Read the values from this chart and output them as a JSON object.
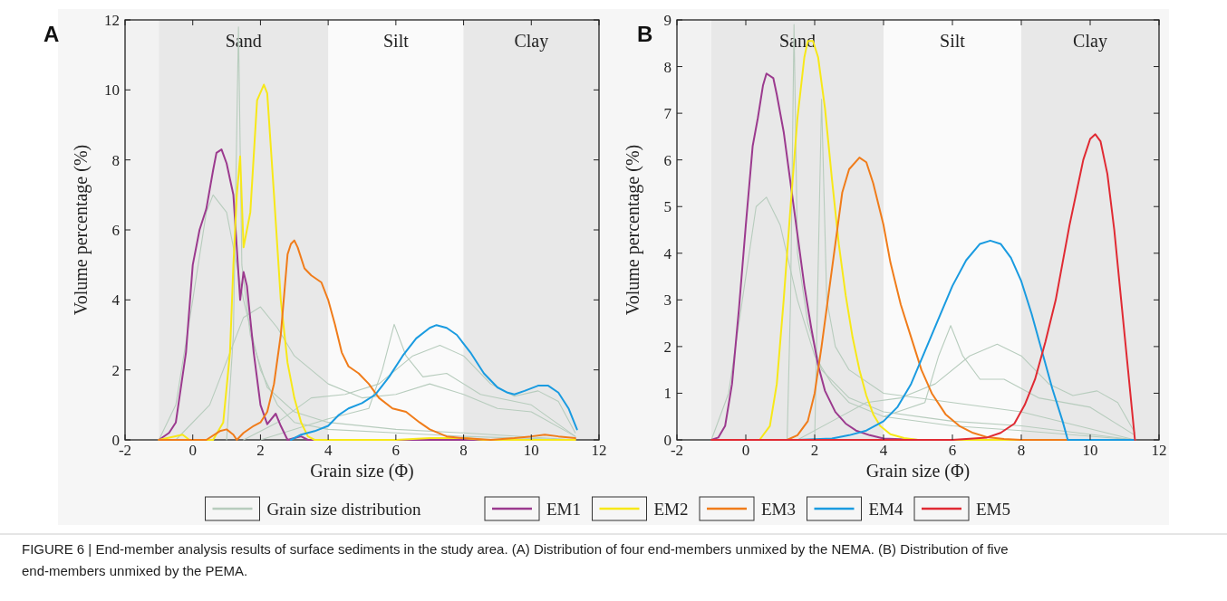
{
  "chart_data": [
    {
      "type": "line",
      "title": "A",
      "xlabel": "Grain size (Φ)",
      "ylabel": "Volume percentage (%)",
      "xlim": [
        -2,
        12
      ],
      "xticks": [
        -2,
        0,
        2,
        4,
        6,
        8,
        10,
        12
      ],
      "ylim": [
        0,
        12
      ],
      "yticks": [
        0,
        2,
        4,
        6,
        8,
        10,
        12
      ],
      "bands": [
        {
          "axis": "x",
          "from": -1,
          "to": 4,
          "label": "Sand",
          "color": "#e8e8e8"
        },
        {
          "axis": "x",
          "from": 4,
          "to": 8,
          "label": "Silt",
          "color": "#fafafa"
        },
        {
          "axis": "x",
          "from": 8,
          "to": 12,
          "label": "Clay",
          "color": "#e8e8e8"
        }
      ],
      "annotations": [
        "FIGURE 6 | End-member analysis results of surface sediments in the study area. (A) Distribution of four end-members unmixed by the NEMA. (B) Distribution of five end-members unmixed by the PEMA."
      ],
      "series": [
        {
          "color": "#b7ccbd",
          "x": [
            -1,
            -0.5,
            0,
            0.4,
            0.6,
            1,
            1.5,
            2,
            2.5,
            3,
            4,
            6,
            8,
            11.3
          ],
          "values": [
            0,
            1,
            4,
            6.5,
            7,
            6.5,
            4,
            2,
            1,
            0.5,
            0.3,
            0.2,
            0.1,
            0
          ]
        },
        {
          "color": "#b7ccbd",
          "x": [
            1,
            1.2,
            1.35,
            1.45,
            1.7,
            2.2,
            3,
            4,
            6,
            8,
            11.3
          ],
          "values": [
            0,
            3,
            11.8,
            5,
            3,
            1.5,
            0.8,
            0.5,
            0.3,
            0.2,
            0
          ]
        },
        {
          "color": "#b7ccbd",
          "x": [
            1.5,
            2.5,
            3.5,
            4.5,
            5.5,
            6.5,
            7.3,
            8,
            8.8,
            9.5,
            10.2,
            10.8,
            11.3
          ],
          "values": [
            0,
            0.5,
            1.2,
            1.3,
            1.6,
            2.4,
            2.7,
            2.4,
            1.6,
            1.25,
            1.4,
            1.1,
            0.2
          ]
        },
        {
          "color": "#b7ccbd",
          "x": [
            -0.5,
            0.5,
            1.5,
            2,
            2.5,
            3,
            4,
            5,
            6,
            7,
            8,
            9,
            10,
            11.3
          ],
          "values": [
            0,
            1,
            3.5,
            3.8,
            3.2,
            2.4,
            1.6,
            1.2,
            1.3,
            1.6,
            1.3,
            0.9,
            0.8,
            0.1
          ]
        },
        {
          "color": "#b7ccbd",
          "x": [
            2,
            4,
            5.2,
            5.6,
            5.95,
            6.3,
            6.8,
            7.5,
            8.5,
            10,
            11.3
          ],
          "values": [
            0,
            0.6,
            0.9,
            2,
            3.3,
            2.4,
            1.8,
            1.9,
            1.3,
            1,
            0.1
          ]
        },
        {
          "color": "#9b3a8e",
          "x": [
            -1,
            -0.7,
            -0.5,
            -0.2,
            0,
            0.2,
            0.4,
            0.6,
            0.7,
            0.85,
            1,
            1.2,
            1.3,
            1.4,
            1.5,
            1.6,
            1.8,
            2,
            2.2,
            2.45,
            2.6,
            2.8,
            3,
            3.2,
            3.4,
            4,
            11.3
          ],
          "values": [
            0,
            0.2,
            0.5,
            2.5,
            5,
            6,
            6.6,
            7.7,
            8.2,
            8.3,
            7.9,
            7,
            5.5,
            4,
            4.8,
            4.4,
            2.5,
            1,
            0.45,
            0.75,
            0.4,
            0,
            0.05,
            0.1,
            0,
            0,
            0
          ]
        },
        {
          "color": "#f7e818",
          "x": [
            -1,
            -0.3,
            -0.1,
            0.6,
            0.9,
            1.1,
            1.2,
            1.3,
            1.4,
            1.5,
            1.7,
            1.9,
            2.1,
            2.2,
            2.4,
            2.6,
            2.8,
            3,
            3.2,
            3.4,
            3.6,
            6,
            7,
            8,
            8.6,
            11.3
          ],
          "values": [
            0,
            0.15,
            0,
            0,
            0.5,
            2.5,
            5,
            7,
            8.1,
            5.5,
            6.5,
            9.7,
            10.15,
            9.9,
            7,
            4,
            2.2,
            1.2,
            0.5,
            0.1,
            0,
            0,
            0.05,
            0.05,
            0,
            0
          ]
        },
        {
          "color": "#f07c1a",
          "x": [
            -1,
            0.4,
            0.8,
            1,
            1.2,
            1.3,
            1.5,
            1.8,
            2,
            2.2,
            2.4,
            2.6,
            2.8,
            2.9,
            3,
            3.1,
            3.3,
            3.5,
            3.8,
            4,
            4.2,
            4.4,
            4.6,
            4.9,
            5.2,
            5.5,
            5.9,
            6.3,
            6.7,
            7,
            7.5,
            8,
            8.8,
            9.5,
            10,
            10.4,
            10.8,
            11.3
          ],
          "values": [
            0,
            0,
            0.25,
            0.3,
            0.15,
            0,
            0.2,
            0.4,
            0.5,
            0.8,
            1.6,
            3,
            5.3,
            5.6,
            5.7,
            5.5,
            4.9,
            4.7,
            4.5,
            4,
            3.3,
            2.5,
            2.1,
            1.9,
            1.6,
            1.2,
            0.9,
            0.8,
            0.5,
            0.3,
            0.1,
            0.05,
            0,
            0.05,
            0.1,
            0.15,
            0.1,
            0.05
          ]
        },
        {
          "color": "#1a9be0",
          "x": [
            2.9,
            3.2,
            3.6,
            4,
            4.3,
            4.6,
            5,
            5.4,
            5.8,
            6.2,
            6.6,
            7,
            7.2,
            7.5,
            7.8,
            8.2,
            8.6,
            9,
            9.3,
            9.5,
            9.8,
            10.2,
            10.5,
            10.8,
            11.1,
            11.35
          ],
          "values": [
            0,
            0.15,
            0.25,
            0.4,
            0.7,
            0.9,
            1.05,
            1.3,
            1.8,
            2.4,
            2.9,
            3.2,
            3.28,
            3.2,
            3,
            2.5,
            1.9,
            1.5,
            1.35,
            1.3,
            1.4,
            1.55,
            1.55,
            1.35,
            0.9,
            0.3
          ]
        }
      ]
    },
    {
      "type": "line",
      "title": "B",
      "xlabel": "Grain size (Φ)",
      "ylabel": "Volume percentage (%)",
      "xlim": [
        -2,
        12
      ],
      "xticks": [
        -2,
        0,
        2,
        4,
        6,
        8,
        10,
        12
      ],
      "ylim": [
        0,
        9
      ],
      "yticks": [
        0,
        1,
        2,
        3,
        4,
        5,
        6,
        7,
        8,
        9
      ],
      "legend": "bottom",
      "bands": [
        {
          "axis": "x",
          "from": -1,
          "to": 4,
          "label": "Sand",
          "color": "#e8e8e8"
        },
        {
          "axis": "x",
          "from": 4,
          "to": 8,
          "label": "Silt",
          "color": "#fafafa"
        },
        {
          "axis": "x",
          "from": 8,
          "to": 12,
          "label": "Clay",
          "color": "#e8e8e8"
        }
      ],
      "series": [
        {
          "name": "Grain size distribution",
          "color": "#b7ccbd",
          "x": [
            -1,
            -0.5,
            0,
            0.3,
            0.6,
            1,
            1.5,
            2,
            2.5,
            3,
            4,
            6,
            8,
            11.3
          ],
          "values": [
            0,
            1,
            3.5,
            5,
            5.2,
            4.6,
            3,
            1.8,
            1.2,
            0.8,
            0.5,
            0.3,
            0.2,
            0
          ]
        },
        {
          "color": "#b7ccbd",
          "x": [
            1.2,
            1.3,
            1.4,
            1.5,
            1.8,
            2.2,
            3,
            4,
            6,
            8,
            11.3
          ],
          "values": [
            0,
            3,
            8.9,
            4,
            2.5,
            1.5,
            0.9,
            0.6,
            0.4,
            0.3,
            0
          ]
        },
        {
          "color": "#b7ccbd",
          "x": [
            1.5,
            2.5,
            3.5,
            4.5,
            5.5,
            6.5,
            7.3,
            8,
            8.8,
            9.5,
            10.2,
            10.8,
            11.3
          ],
          "values": [
            0,
            0.4,
            0.8,
            0.9,
            1.2,
            1.8,
            2.05,
            1.8,
            1.2,
            0.95,
            1.05,
            0.8,
            0.15
          ]
        },
        {
          "color": "#b7ccbd",
          "x": [
            2,
            2.2,
            2.35,
            2.6,
            3,
            4,
            6,
            8,
            11.3
          ],
          "values": [
            0,
            7.3,
            3,
            2,
            1.5,
            1,
            0.8,
            0.6,
            0
          ]
        },
        {
          "color": "#b7ccbd",
          "x": [
            4,
            5.2,
            5.6,
            5.95,
            6.3,
            6.8,
            7.5,
            8.5,
            10,
            11.3
          ],
          "values": [
            0.5,
            0.8,
            1.8,
            2.45,
            1.8,
            1.3,
            1.3,
            0.9,
            0.7,
            0.1
          ]
        },
        {
          "name": "EM1",
          "color": "#9b3a8e",
          "x": [
            -1,
            -0.8,
            -0.6,
            -0.4,
            -0.2,
            0,
            0.2,
            0.35,
            0.5,
            0.6,
            0.8,
            0.9,
            1.1,
            1.3,
            1.5,
            1.7,
            1.9,
            2.1,
            2.3,
            2.6,
            2.9,
            3.2,
            3.6,
            4,
            5,
            11.3
          ],
          "values": [
            0,
            0.05,
            0.3,
            1.2,
            2.8,
            4.6,
            6.3,
            6.9,
            7.6,
            7.85,
            7.75,
            7.4,
            6.6,
            5.5,
            4.4,
            3.3,
            2.4,
            1.6,
            1.05,
            0.6,
            0.35,
            0.2,
            0.1,
            0.03,
            0,
            0
          ]
        },
        {
          "name": "EM2",
          "color": "#f7e818",
          "x": [
            -1,
            0.4,
            0.7,
            0.9,
            1.1,
            1.3,
            1.5,
            1.7,
            1.8,
            1.95,
            2.1,
            2.3,
            2.5,
            2.7,
            2.9,
            3.1,
            3.3,
            3.5,
            3.7,
            3.9,
            4.2,
            4.6,
            5,
            11.3
          ],
          "values": [
            0,
            0,
            0.3,
            1.2,
            3,
            5,
            6.9,
            8.2,
            8.55,
            8.55,
            8.2,
            7.1,
            5.6,
            4.2,
            3.1,
            2.2,
            1.5,
            0.95,
            0.55,
            0.3,
            0.12,
            0.04,
            0,
            0
          ]
        },
        {
          "name": "EM3",
          "color": "#f07c1a",
          "x": [
            -1,
            1.2,
            1.5,
            1.8,
            2,
            2.2,
            2.4,
            2.6,
            2.8,
            3,
            3.3,
            3.5,
            3.7,
            4,
            4.2,
            4.5,
            4.8,
            5.1,
            5.4,
            5.8,
            6.2,
            6.6,
            7,
            7.5,
            8,
            11.3
          ],
          "values": [
            0,
            0,
            0.1,
            0.4,
            1,
            2,
            3.1,
            4.2,
            5.3,
            5.8,
            6.05,
            5.95,
            5.5,
            4.6,
            3.8,
            2.9,
            2.2,
            1.5,
            1,
            0.55,
            0.3,
            0.15,
            0.06,
            0.02,
            0,
            0
          ]
        },
        {
          "name": "EM4",
          "color": "#1a9be0",
          "x": [
            -1,
            1.5,
            2.5,
            3,
            3.5,
            4,
            4.4,
            4.8,
            5.2,
            5.6,
            6,
            6.4,
            6.8,
            7.1,
            7.4,
            7.7,
            8,
            8.3,
            8.6,
            8.9,
            9.2,
            9.35,
            11.3
          ],
          "values": [
            0,
            0,
            0.03,
            0.1,
            0.2,
            0.4,
            0.7,
            1.2,
            1.9,
            2.6,
            3.3,
            3.85,
            4.2,
            4.27,
            4.2,
            3.9,
            3.4,
            2.7,
            1.9,
            1.1,
            0.4,
            0,
            0
          ]
        },
        {
          "name": "EM5",
          "color": "#e02a33",
          "x": [
            -1,
            6,
            7,
            7.4,
            7.8,
            8.1,
            8.4,
            8.7,
            9,
            9.2,
            9.4,
            9.6,
            9.8,
            10,
            10.15,
            10.3,
            10.5,
            10.7,
            10.9,
            11.1,
            11.3
          ],
          "values": [
            0,
            0,
            0.05,
            0.15,
            0.35,
            0.75,
            1.3,
            2.1,
            3,
            3.8,
            4.6,
            5.3,
            6,
            6.45,
            6.55,
            6.4,
            5.7,
            4.5,
            3,
            1.5,
            0
          ]
        }
      ]
    }
  ]
}
